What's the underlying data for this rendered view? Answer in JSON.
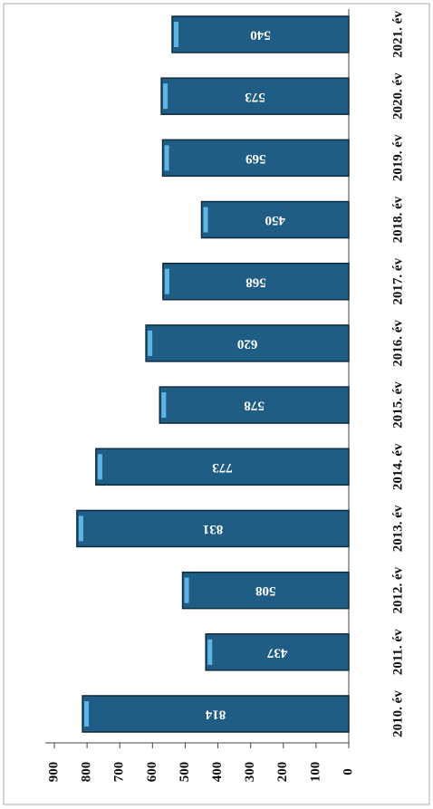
{
  "chart_data": {
    "type": "bar",
    "orientation": "rotated",
    "categories": [
      "2010. év",
      "2011. év",
      "2012. év",
      "2013. év",
      "2014. év",
      "2015. év",
      "2016. év",
      "2017. év",
      "2018. év",
      "2019. év",
      "2020. év",
      "2021. év"
    ],
    "values": [
      814,
      437,
      508,
      831,
      773,
      578,
      620,
      568,
      450,
      569,
      573,
      540
    ],
    "color": "#1f5d84",
    "ylim": [
      0,
      900
    ],
    "yticks": [
      0,
      100,
      200,
      300,
      400,
      500,
      600,
      700,
      800,
      900
    ]
  }
}
